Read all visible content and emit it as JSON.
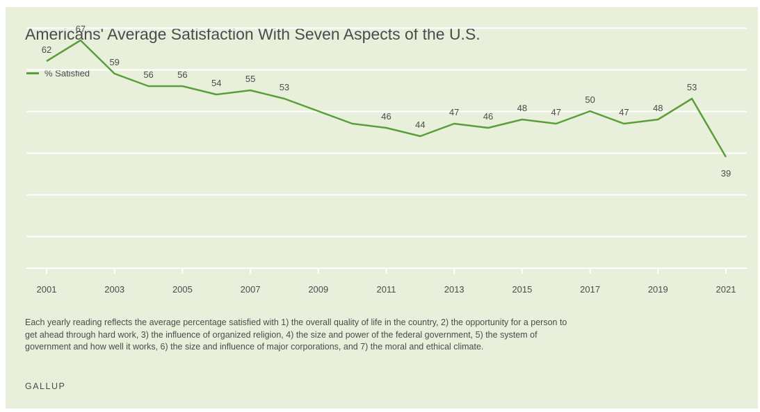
{
  "chart_data": {
    "type": "line",
    "title": "Americans' Average Satisfaction With Seven Aspects of the U.S.",
    "xlabel": "",
    "ylabel": "",
    "x": [
      2001,
      2002,
      2003,
      2004,
      2005,
      2006,
      2007,
      2008,
      2009,
      2010,
      2011,
      2012,
      2013,
      2014,
      2015,
      2016,
      2017,
      2018,
      2019,
      2020,
      2021
    ],
    "x_tick_labels": [
      "2001",
      "2003",
      "2005",
      "2007",
      "2009",
      "2011",
      "2013",
      "2015",
      "2017",
      "2019",
      "2021"
    ],
    "series": [
      {
        "name": "% Satisfied",
        "color": "#5a9e3a",
        "values": [
          62,
          67,
          59,
          56,
          56,
          54,
          55,
          53,
          50,
          47,
          46,
          44,
          47,
          46,
          48,
          47,
          50,
          47,
          48,
          53,
          39
        ]
      }
    ],
    "data_labels": [
      {
        "year": 2001,
        "text": "62"
      },
      {
        "year": 2002,
        "text": "67"
      },
      {
        "year": 2003,
        "text": "59"
      },
      {
        "year": 2004,
        "text": "56"
      },
      {
        "year": 2005,
        "text": "56"
      },
      {
        "year": 2006,
        "text": "54"
      },
      {
        "year": 2007,
        "text": "55"
      },
      {
        "year": 2008,
        "text": "53"
      },
      {
        "year": 2011,
        "text": "46"
      },
      {
        "year": 2012,
        "text": "44"
      },
      {
        "year": 2013,
        "text": "47"
      },
      {
        "year": 2014,
        "text": "46"
      },
      {
        "year": 2015,
        "text": "48"
      },
      {
        "year": 2016,
        "text": "47"
      },
      {
        "year": 2017,
        "text": "50"
      },
      {
        "year": 2018,
        "text": "47"
      },
      {
        "year": 2019,
        "text": "48"
      },
      {
        "year": 2020,
        "text": "53"
      },
      {
        "year": 2021,
        "text": "39"
      }
    ],
    "ylim": [
      20,
      70
    ],
    "grid": true,
    "legend_position": "top-left",
    "y_axis_labels_shown": false
  },
  "note": "Each yearly reading reflects the average percentage satisfied with 1) the overall quality of life in the country, 2) the opportunity for a person to get ahead through hard work, 3) the influence of organized religion, 4) the size and power of the federal government, 5) the system of government and how well it works, 6) the size and influence of major corporations, and 7) the moral and ethical climate.",
  "source": "GALLUP",
  "colors": {
    "background": "#e8f0dc",
    "line": "#5a9e3a",
    "gridline": "#ffffff",
    "text": "#4b4b4b"
  }
}
